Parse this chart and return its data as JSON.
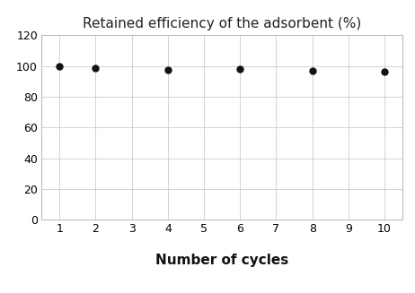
{
  "title": "Retained efficiency of the adsorbent (%)",
  "xlabel": "Number of cycles",
  "ylabel": "",
  "x_values": [
    1,
    2,
    4,
    6,
    8,
    10
  ],
  "y_values": [
    99.5,
    98.5,
    97.5,
    97.8,
    96.8,
    96.5
  ],
  "xlim": [
    0.5,
    10.5
  ],
  "ylim": [
    0,
    120
  ],
  "xticks": [
    1,
    2,
    3,
    4,
    5,
    6,
    7,
    8,
    9,
    10
  ],
  "yticks": [
    0,
    20,
    40,
    60,
    80,
    100,
    120
  ],
  "marker_color": "#111111",
  "marker_size": 5,
  "grid_color": "#cccccc",
  "spine_color": "#bbbbbb",
  "background_color": "#ffffff",
  "title_fontsize": 11,
  "xlabel_fontsize": 11,
  "tick_fontsize": 9
}
